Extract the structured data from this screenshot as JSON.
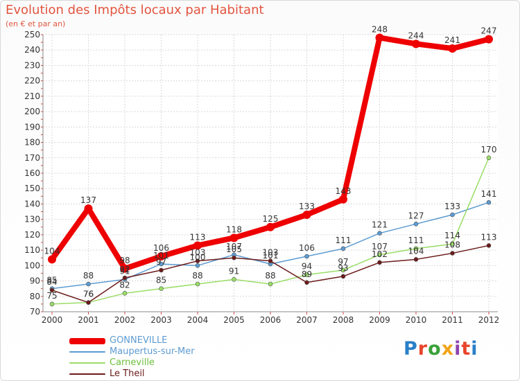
{
  "header": {
    "title": "Evolution des Impôts locaux par Habitant",
    "subtitle": "(en € et par an)"
  },
  "logo": {
    "text": "Proxiti",
    "colors": [
      "#2a7fc9",
      "#e8452c",
      "#3aa13a",
      "#f0a419",
      "#8e44ad",
      "#e8452c",
      "#2a7fc9"
    ]
  },
  "chart_data": {
    "type": "line",
    "title": "Evolution des Impôts locaux par Habitant",
    "subtitle": "(en € et par an)",
    "xlabel": "",
    "ylabel": "",
    "ylim": [
      70,
      250
    ],
    "ytick_step": 10,
    "grid": true,
    "legend_position": "bottom-left",
    "x": [
      "2000",
      "2001",
      "2002",
      "2003",
      "2004",
      "2005",
      "2006",
      "2007",
      "2008",
      "2009",
      "2010",
      "2011",
      "2012"
    ],
    "series": [
      {
        "name": "GONNEVILLE",
        "color": "#ee0000",
        "values": [
          104,
          137,
          98,
          106,
          113,
          118,
          125,
          133,
          143,
          248,
          244,
          241,
          247
        ]
      },
      {
        "name": "Maupertus-sur-Mer",
        "color": "#5d9bd1",
        "values": [
          85,
          88,
          91,
          101,
          100,
          107,
          101,
          106,
          111,
          121,
          127,
          133,
          141
        ]
      },
      {
        "name": "Carneville",
        "color": "#99dd66",
        "values": [
          75,
          76,
          82,
          85,
          88,
          91,
          88,
          94,
          97,
          107,
          111,
          114,
          170
        ]
      },
      {
        "name": "Le Theil",
        "color": "#6b1a1a",
        "values": [
          84,
          76,
          92,
          97,
          103,
          105,
          103,
          89,
          93,
          102,
          104,
          108,
          113
        ]
      }
    ]
  }
}
